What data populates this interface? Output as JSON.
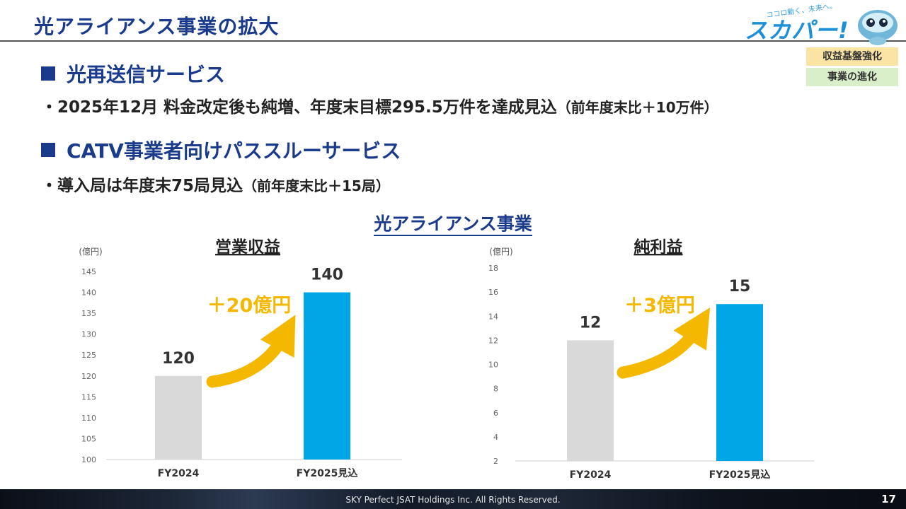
{
  "slide": {
    "title": "光アライアンス事業の拡大",
    "logo_text": "スカパー!",
    "logo_tagline": "ココロ動く、未来へ。",
    "tags": [
      "収益基盤強化",
      "事業の進化"
    ],
    "colors": {
      "heading": "#1a3a8c",
      "prev_bar": "#d9d9d9",
      "curr_bar": "#00a6e6",
      "arrow": "#f5b800"
    }
  },
  "sections": [
    {
      "heading": "光再送信サービス",
      "bullet_main": "・2025年12月 料金改定後も純増、年度末目標295.5万件を達成見込",
      "bullet_note": "（前年度末比＋10万件）"
    },
    {
      "heading": "CATV事業者向けパススルーサービス",
      "bullet_main": "・導入局は年度末75局見込",
      "bullet_note": "（前年度末比＋15局）"
    }
  ],
  "charts_title": "光アライアンス事業",
  "chart_data": [
    {
      "type": "bar",
      "title": "営業収益",
      "unit_label": "(億円)",
      "categories": [
        "FY2024",
        "FY2025見込"
      ],
      "values": [
        120,
        140
      ],
      "value_labels": [
        "120",
        "140"
      ],
      "ylim": [
        100,
        145
      ],
      "yticks": [
        100,
        105,
        110,
        115,
        120,
        125,
        130,
        135,
        140,
        145
      ],
      "annotation": "＋20億円",
      "grid": false
    },
    {
      "type": "bar",
      "title": "純利益",
      "unit_label": "(億円)",
      "categories": [
        "FY2024",
        "FY2025見込"
      ],
      "values": [
        12,
        15
      ],
      "value_labels": [
        "12",
        "15"
      ],
      "ylim": [
        2,
        18
      ],
      "yticks": [
        2,
        4,
        6,
        8,
        10,
        12,
        14,
        16,
        18
      ],
      "annotation": "＋3億円",
      "grid": false
    }
  ],
  "footer": {
    "copyright": "SKY Perfect JSAT Holdings Inc. All Rights Reserved.",
    "page": "17"
  }
}
